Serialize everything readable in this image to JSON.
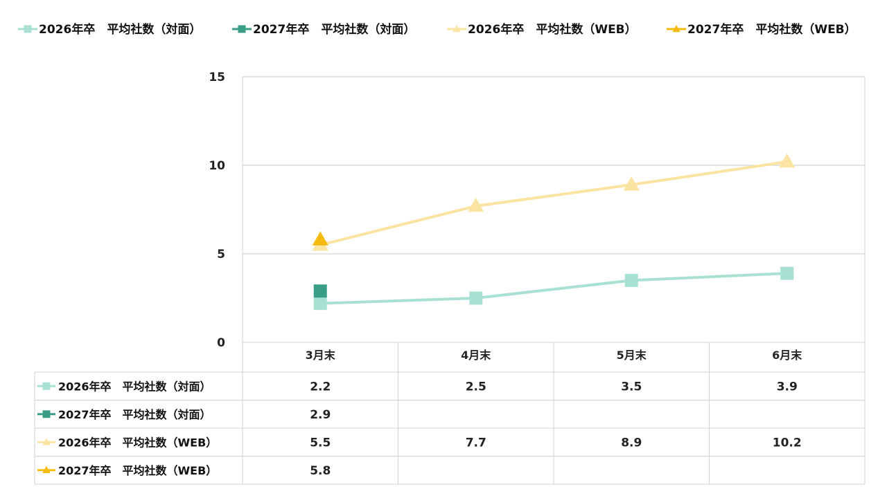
{
  "chart_data": {
    "type": "line",
    "categories": [
      "3月末",
      "4月末",
      "5月末",
      "6月末"
    ],
    "ylim": [
      0,
      15
    ],
    "yticks": [
      0,
      5,
      10,
      15
    ],
    "grid": true,
    "legend_position": "top",
    "series": [
      {
        "name": "2026年卒　平均社数（対面）",
        "values": [
          2.2,
          2.5,
          3.5,
          3.9
        ],
        "color": "#a8e0d4",
        "marker": "square"
      },
      {
        "name": "2027年卒　平均社数（対面）",
        "values": [
          2.9,
          null,
          null,
          null
        ],
        "color": "#3a9e86",
        "marker": "square"
      },
      {
        "name": "2026年卒　平均社数（WEB）",
        "values": [
          5.5,
          7.7,
          8.9,
          10.2
        ],
        "color": "#fbe3a2",
        "marker": "triangle"
      },
      {
        "name": "2027年卒　平均社数（WEB）",
        "values": [
          5.8,
          null,
          null,
          null
        ],
        "color": "#f5bb10",
        "marker": "triangle"
      }
    ],
    "table": {
      "rows": [
        [
          "2.2",
          "2.5",
          "3.5",
          "3.9"
        ],
        [
          "2.9",
          "",
          "",
          ""
        ],
        [
          "5.5",
          "7.7",
          "8.9",
          "10.2"
        ],
        [
          "5.8",
          "",
          "",
          ""
        ]
      ]
    }
  }
}
